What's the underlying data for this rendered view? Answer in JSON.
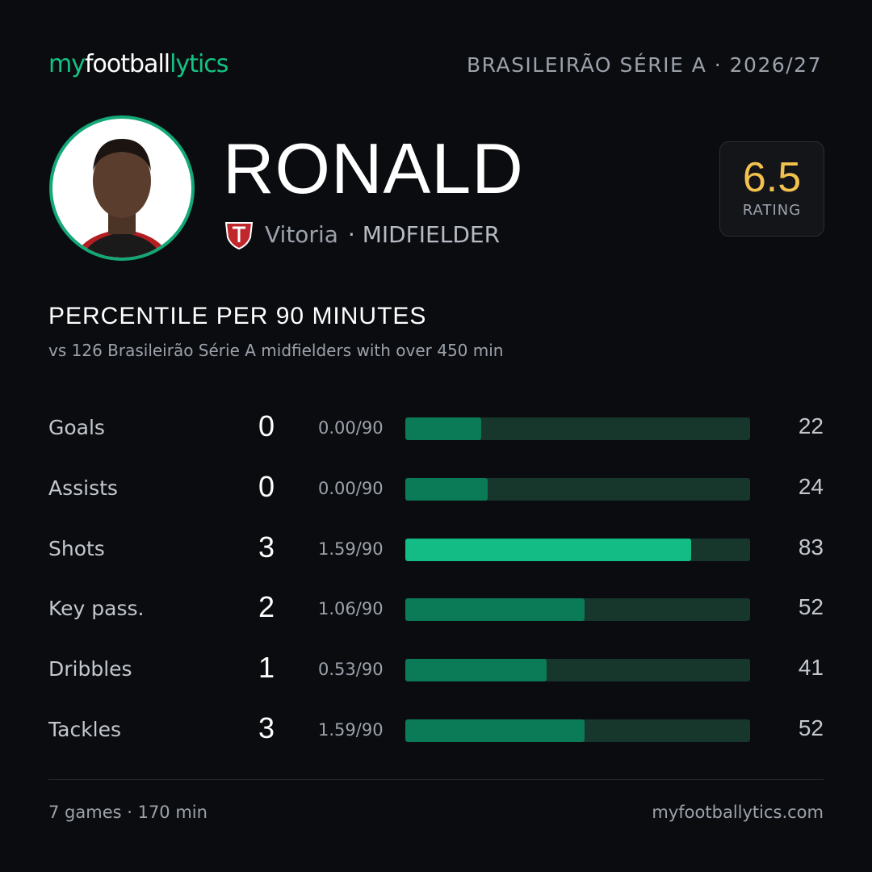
{
  "header": {
    "logo": [
      "my",
      "football",
      "lytics"
    ],
    "league": "BRASILEIRÃO SÉRIE A · 2026/27"
  },
  "player": {
    "name": "RONALD",
    "club": "Vitoria",
    "position": "· MIDFIELDER",
    "rating": 6.5,
    "rating_label": "RATING"
  },
  "section": {
    "title": "PERCENTILE PER 90 MINUTES",
    "subtitle": "vs 126 Brasileirão Série A midfielders with over 450 min"
  },
  "stats": [
    {
      "name": "Goals",
      "value": 0,
      "per90": "0.00/90",
      "percentile": 22,
      "color": "#0b7a57"
    },
    {
      "name": "Assists",
      "value": 0,
      "per90": "0.00/90",
      "percentile": 24,
      "color": "#0b7a57"
    },
    {
      "name": "Shots",
      "value": 3,
      "per90": "1.59/90",
      "percentile": 83,
      "color": "#12bc84"
    },
    {
      "name": "Key pass.",
      "value": 2,
      "per90": "1.06/90",
      "percentile": 52,
      "color": "#0b7a57"
    },
    {
      "name": "Dribbles",
      "value": 1,
      "per90": "0.53/90",
      "percentile": 41,
      "color": "#0b7a57"
    },
    {
      "name": "Tackles",
      "value": 3,
      "per90": "1.59/90",
      "percentile": 52,
      "color": "#0b7a57"
    }
  ],
  "footer": {
    "summary": "7 games · 170 min",
    "site": "myfootballytics.com"
  }
}
